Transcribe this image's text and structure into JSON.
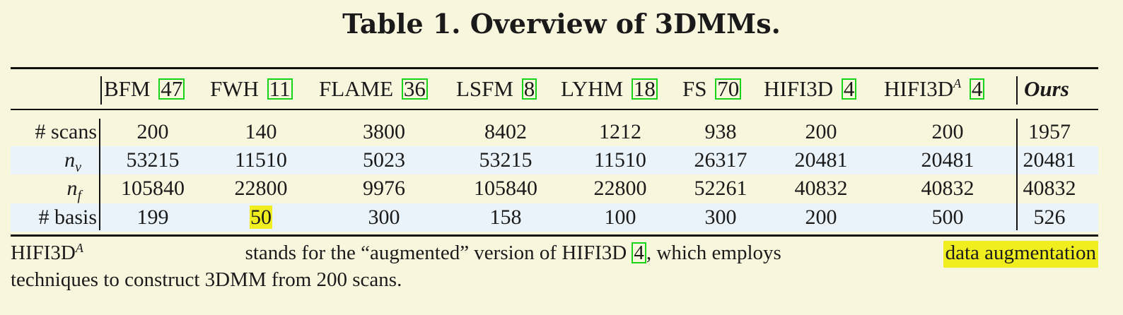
{
  "caption": {
    "title": "Table 1. Overview of 3DMMs."
  },
  "table": {
    "columns": [
      {
        "name": "BFM",
        "cite": "47"
      },
      {
        "name": "FWH",
        "cite": "11"
      },
      {
        "name": "FLAME",
        "cite": "36"
      },
      {
        "name": "LSFM",
        "cite": "8"
      },
      {
        "name": "LYHM",
        "cite": "18"
      },
      {
        "name": "FS",
        "cite": "70"
      },
      {
        "name": "HIFI3D",
        "cite": "4"
      },
      {
        "name": "HIFI3D",
        "sup": "A",
        "cite": "4"
      },
      {
        "name": "Ours"
      }
    ],
    "rows": [
      {
        "label": "# scans",
        "values": [
          "200",
          "140",
          "3800",
          "8402",
          "1212",
          "938",
          "200",
          "200",
          "1957"
        ]
      },
      {
        "label_sym": "n",
        "label_sub": "v",
        "values": [
          "53215",
          "11510",
          "5023",
          "53215",
          "11510",
          "26317",
          "20481",
          "20481",
          "20481"
        ]
      },
      {
        "label_sym": "n",
        "label_sub": "f",
        "values": [
          "105840",
          "22800",
          "9976",
          "105840",
          "22800",
          "52261",
          "40832",
          "40832",
          "40832"
        ]
      },
      {
        "label": "# basis",
        "values": [
          "199",
          "50",
          "300",
          "158",
          "100",
          "300",
          "200",
          "500",
          "526"
        ]
      }
    ],
    "highlighted_cell": "50",
    "highlight_color": "#f0ee1e",
    "cite_box_color": "#19d319",
    "shaded_row_color": "#eaf3f9"
  },
  "footnote": {
    "term": "HIFI3D",
    "term_sup": "A",
    "text_a": "stands for the “augmented” version of HIFI3D",
    "cite": "4",
    "text_b": ", which employs",
    "highlight": "data augmentation",
    "text_c": "techniques to construct 3DMM from 200 scans."
  }
}
